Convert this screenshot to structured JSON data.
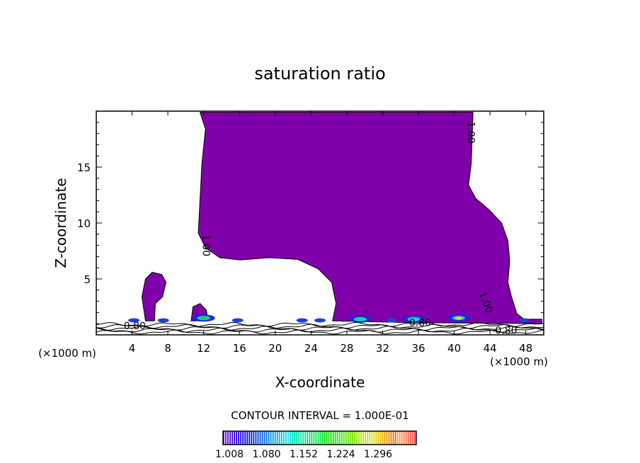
{
  "chart_data": {
    "type": "contour",
    "title": "saturation ratio",
    "xlabel": "X-coordinate",
    "ylabel": "Z-coordinate",
    "x_unit": "(×1000 m)",
    "y_unit": "(×1000 m)",
    "xlim": [
      0,
      50
    ],
    "ylim": [
      0,
      20
    ],
    "x_ticks": [
      4,
      8,
      12,
      16,
      20,
      24,
      28,
      32,
      36,
      40,
      44,
      48
    ],
    "y_ticks": [
      5,
      10,
      15
    ],
    "contour_interval_label": "CONTOUR INTERVAL = 1.000E-01",
    "contour_labels": [
      {
        "text": "1.00",
        "x": 41.5,
        "z": 18.1,
        "rot": 90
      },
      {
        "text": "1.00",
        "x": 11.9,
        "z": 8.0,
        "rot": 90
      },
      {
        "text": "1.00",
        "x": 43.2,
        "z": 2.8,
        "rot": 70
      },
      {
        "text": "0.80",
        "x": 4.3,
        "z": 0.5,
        "rot": 0
      },
      {
        "text": "0.80",
        "x": 36.2,
        "z": 0.8,
        "rot": 0
      },
      {
        "text": "0.80",
        "x": 45.8,
        "z": 0.1,
        "rot": 0
      }
    ],
    "saturated_regions": [
      [
        [
          11.6,
          19.9
        ],
        [
          42.1,
          19.9
        ],
        [
          41.9,
          15.3
        ],
        [
          41.6,
          13.4
        ],
        [
          42.4,
          12.2
        ],
        [
          43.8,
          11.25
        ],
        [
          45.3,
          10
        ],
        [
          46,
          8.4
        ],
        [
          46.2,
          6.6
        ],
        [
          46,
          4.7
        ],
        [
          46.4,
          3.4
        ],
        [
          47,
          1.9
        ],
        [
          47.8,
          1.4
        ],
        [
          49.8,
          1.4
        ],
        [
          49.8,
          1.0
        ],
        [
          35,
          1.1
        ],
        [
          26.4,
          1.25
        ],
        [
          26.8,
          2.8
        ],
        [
          26.3,
          4.7
        ],
        [
          24.8,
          5.9
        ],
        [
          22.5,
          6.75
        ],
        [
          19.3,
          6.9
        ],
        [
          16.1,
          6.7
        ],
        [
          13.8,
          6.9
        ],
        [
          12.2,
          7.8
        ],
        [
          11.4,
          9.1
        ],
        [
          11.6,
          12.2
        ],
        [
          11.8,
          15.3
        ],
        [
          12.2,
          18.4
        ]
      ],
      [
        [
          5.5,
          1.25
        ],
        [
          5.1,
          3.4
        ],
        [
          5.5,
          5.0
        ],
        [
          6.25,
          5.6
        ],
        [
          7.3,
          5.4
        ],
        [
          7.8,
          4.7
        ],
        [
          7.4,
          3.4
        ],
        [
          6.6,
          2.8
        ],
        [
          6.5,
          1.25
        ]
      ],
      [
        [
          10.6,
          1.25
        ],
        [
          10.8,
          2.5
        ],
        [
          11.6,
          2.8
        ],
        [
          12.3,
          2.2
        ],
        [
          12.5,
          1.25
        ]
      ]
    ],
    "peaks": [
      {
        "x": 12,
        "z": 1.5,
        "value": 1.18
      },
      {
        "x": 29.5,
        "z": 1.4,
        "value": 1.15
      },
      {
        "x": 35.5,
        "z": 1.4,
        "value": 1.12
      },
      {
        "x": 40.5,
        "z": 1.5,
        "value": 1.25
      }
    ],
    "colorbar": {
      "min": 1.0,
      "max": 1.33,
      "tick_labels": [
        "1.008",
        "1.080",
        "1.152",
        "1.224",
        "1.296"
      ],
      "low_color": "#7f00aa"
    }
  }
}
